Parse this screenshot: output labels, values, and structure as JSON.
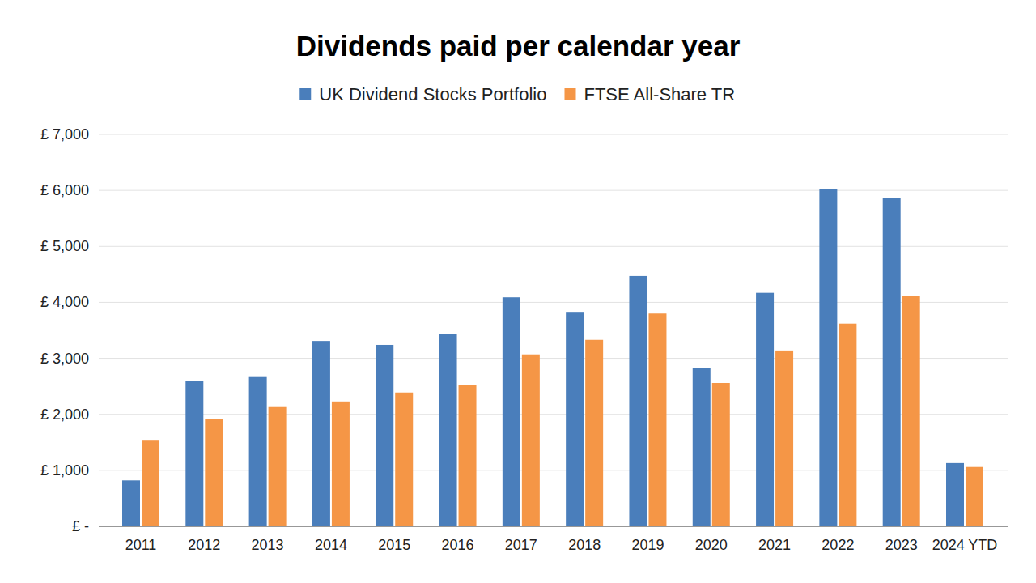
{
  "chart_data": {
    "type": "bar",
    "title": "Dividends paid per calendar year",
    "categories": [
      "2011",
      "2012",
      "2013",
      "2014",
      "2015",
      "2016",
      "2017",
      "2018",
      "2019",
      "2020",
      "2021",
      "2022",
      "2023",
      "2024 YTD"
    ],
    "series": [
      {
        "name": "UK Dividend Stocks Portfolio",
        "color": "#4a7ebb",
        "values": [
          820,
          2600,
          2680,
          3310,
          3240,
          3430,
          4090,
          3830,
          4470,
          2830,
          4170,
          6020,
          5860,
          1130
        ]
      },
      {
        "name": "FTSE All-Share TR",
        "color": "#f59646",
        "values": [
          1530,
          1910,
          2130,
          2230,
          2390,
          2530,
          3070,
          3330,
          3800,
          2560,
          3140,
          3620,
          4110,
          1060
        ]
      }
    ],
    "ylim": [
      0,
      7000
    ],
    "yticks": [
      {
        "value": 0,
        "label": "£ -"
      },
      {
        "value": 1000,
        "label": "£ 1,000"
      },
      {
        "value": 2000,
        "label": "£ 2,000"
      },
      {
        "value": 3000,
        "label": "£ 3,000"
      },
      {
        "value": 4000,
        "label": "£ 4,000"
      },
      {
        "value": 5000,
        "label": "£ 5,000"
      },
      {
        "value": 6000,
        "label": "£ 6,000"
      },
      {
        "value": 7000,
        "label": "£ 7,000"
      }
    ],
    "grid": true,
    "legend": "top"
  }
}
